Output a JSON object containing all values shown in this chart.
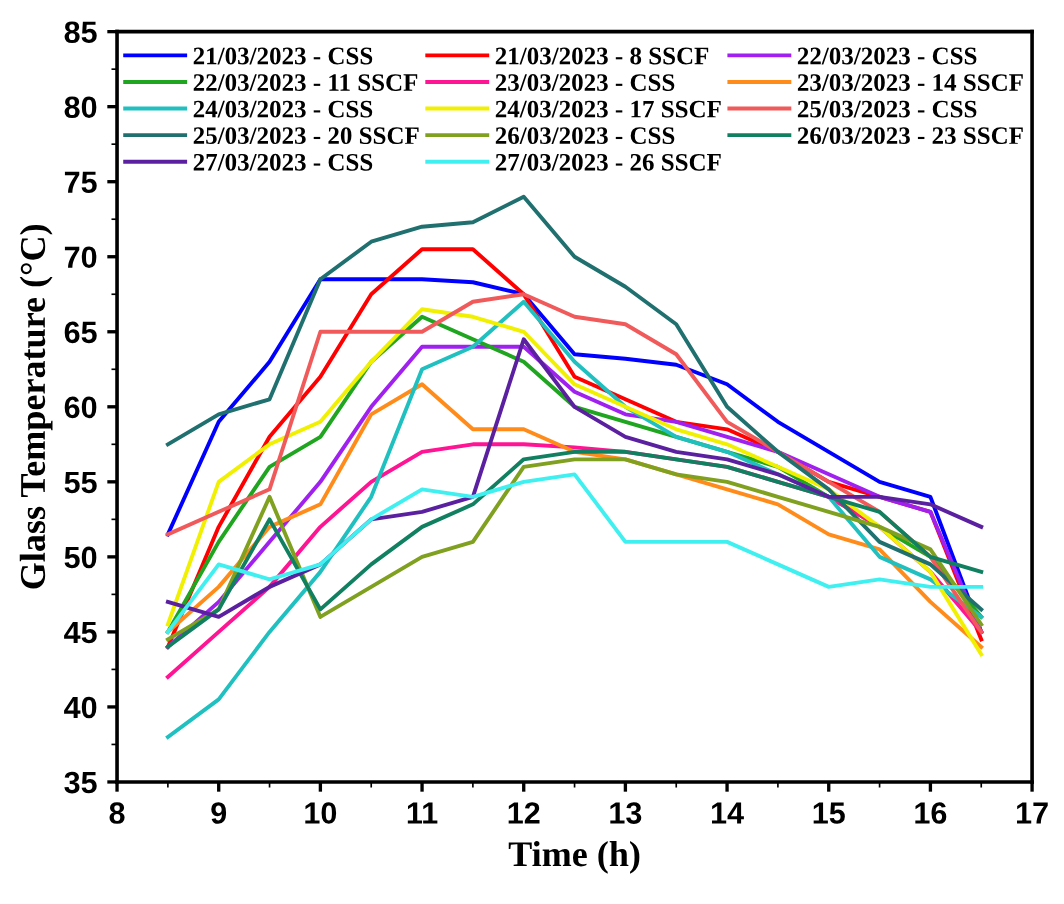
{
  "chart_data": {
    "type": "line",
    "xlabel": "Time (h)",
    "ylabel": "Glass Temperature (°C)",
    "xlim": [
      8,
      17
    ],
    "ylim": [
      35,
      85
    ],
    "xticks": [
      8,
      9,
      10,
      11,
      12,
      13,
      14,
      15,
      16,
      17
    ],
    "yticks": [
      35,
      40,
      45,
      50,
      55,
      60,
      65,
      70,
      75,
      80,
      85
    ],
    "grid": false,
    "legend": "top",
    "marker": "none",
    "line_style": "solid",
    "x": [
      8.5,
      9,
      9.5,
      10,
      10.5,
      11,
      11.5,
      12,
      12.5,
      13,
      13.5,
      14,
      14.5,
      15,
      15.5,
      16,
      16.5
    ],
    "series": [
      {
        "name": "21/03/2023 - CSS",
        "color": "#0000ff",
        "values": [
          51.5,
          59,
          63,
          68.5,
          68.5,
          68.5,
          68.3,
          67.5,
          63.5,
          63.2,
          62.8,
          61.5,
          59,
          57,
          55,
          54,
          45
        ]
      },
      {
        "name": "21/03/2023 - 8 SSCF",
        "color": "#ff0000",
        "values": [
          44,
          52,
          58,
          62,
          67.5,
          70.5,
          70.5,
          67.5,
          62,
          60.5,
          59,
          58.5,
          57,
          55,
          54,
          53,
          44.5
        ]
      },
      {
        "name": "22/03/2023 - CSS",
        "color": "#a020f0",
        "values": [
          44,
          47,
          51,
          55,
          60,
          64,
          64,
          64,
          61,
          59.5,
          59,
          58,
          57,
          55.5,
          54,
          53,
          45
        ]
      },
      {
        "name": "22/03/2023 - 11 SSCF",
        "color": "#1fa51f",
        "values": [
          45,
          51,
          56,
          58,
          63,
          66,
          64.5,
          63,
          60,
          59,
          58,
          57,
          56,
          54,
          52,
          50,
          46
        ]
      },
      {
        "name": "23/03/2023 - CSS",
        "color": "#ff1493",
        "values": [
          42,
          45,
          48,
          52,
          55,
          57,
          57.5,
          57.5,
          57.3,
          57,
          56.5,
          56,
          55,
          54,
          52,
          49,
          45
        ]
      },
      {
        "name": "23/03/2023 - 14 SSCF",
        "color": "#ff8c1a",
        "values": [
          45,
          48,
          52,
          53.5,
          59.5,
          61.5,
          58.5,
          58.5,
          57,
          56.5,
          55.5,
          54.5,
          53.5,
          51.5,
          50.5,
          47,
          44
        ]
      },
      {
        "name": "24/03/2023 - CSS",
        "color": "#20c0c0",
        "values": [
          38,
          40.5,
          45,
          49,
          54,
          62.5,
          64,
          67,
          63,
          60,
          58,
          57,
          55.5,
          54,
          50,
          48.5,
          46
        ]
      },
      {
        "name": "24/03/2023 - 17 SSCF",
        "color": "#f0f000",
        "values": [
          45.5,
          55,
          57.5,
          59,
          63,
          66.5,
          66,
          65,
          61.5,
          60,
          58.5,
          57.5,
          56,
          54.5,
          52,
          49,
          43.5
        ]
      },
      {
        "name": "25/03/2023 - CSS",
        "color": "#f05a5a",
        "values": [
          51.5,
          53,
          54.5,
          65,
          65,
          65,
          67,
          67.5,
          66,
          65.5,
          63.5,
          59,
          57,
          55,
          53,
          50,
          45
        ]
      },
      {
        "name": "25/03/2023 - 20 SSCF",
        "color": "#207070",
        "values": [
          57.5,
          59.5,
          60.5,
          68.5,
          71,
          72,
          72.3,
          74,
          70,
          68,
          65.5,
          60,
          57,
          54.5,
          51,
          49.5,
          46.5
        ]
      },
      {
        "name": "26/03/2023 - CSS",
        "color": "#80a020",
        "values": [
          44.5,
          46.5,
          54,
          46,
          48,
          50,
          51,
          56,
          56.5,
          56.5,
          55.5,
          55,
          54,
          53,
          52,
          50.5,
          45.5
        ]
      },
      {
        "name": "26/03/2023 - 23 SSCF",
        "color": "#108060",
        "values": [
          44,
          46.5,
          52.5,
          46.5,
          49.5,
          52,
          53.5,
          56.5,
          57,
          57,
          56.5,
          56,
          55,
          54,
          53,
          50,
          49
        ]
      },
      {
        "name": "27/03/2023 - CSS",
        "color": "#5a20a0",
        "values": [
          47,
          46,
          48,
          49.5,
          52.5,
          53,
          54,
          64.5,
          60,
          58,
          57,
          56.5,
          55.5,
          54,
          54,
          53.5,
          52
        ]
      },
      {
        "name": "27/03/2023 - 26 SSCF",
        "color": "#40f0f0",
        "values": [
          45,
          49.5,
          48.5,
          49.5,
          52.5,
          54.5,
          54,
          55,
          55.5,
          51,
          51,
          51,
          49.5,
          48,
          48.5,
          48,
          48
        ]
      }
    ]
  }
}
